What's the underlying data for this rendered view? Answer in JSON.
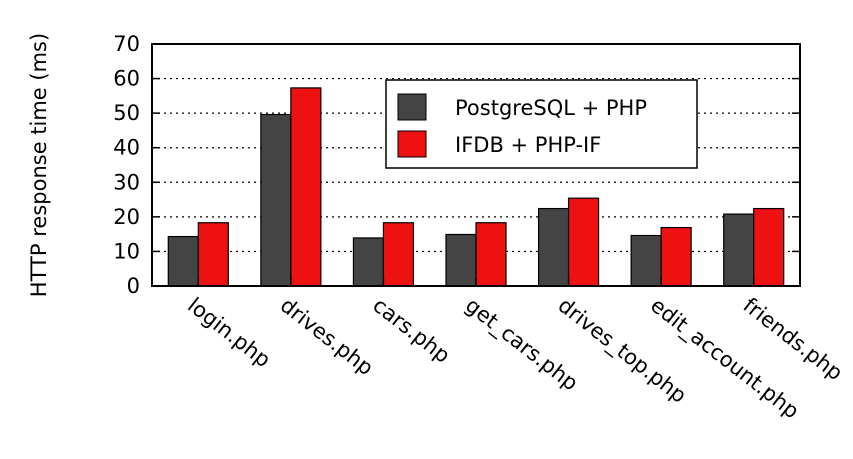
{
  "chart_data": {
    "type": "bar",
    "title": "",
    "xlabel": "",
    "ylabel": "HTTP response time (ms)",
    "ylim": [
      0,
      70
    ],
    "yticks": [
      0,
      10,
      20,
      30,
      40,
      50,
      60,
      70
    ],
    "grid": true,
    "legend_position": "top-right",
    "categories": [
      "login.php",
      "drives.php",
      "cars.php",
      "get_cars.php",
      "drives_top.php",
      "edit_account.php",
      "friends.php"
    ],
    "series": [
      {
        "name": "PostgreSQL + PHP",
        "color": "#444444",
        "values": [
          14.3,
          49.6,
          13.9,
          14.9,
          22.4,
          14.6,
          20.8
        ]
      },
      {
        "name": "IFDB + PHP-IF",
        "color": "#ee1111",
        "values": [
          18.3,
          57.3,
          18.3,
          18.3,
          25.4,
          16.9,
          22.4
        ]
      }
    ]
  }
}
